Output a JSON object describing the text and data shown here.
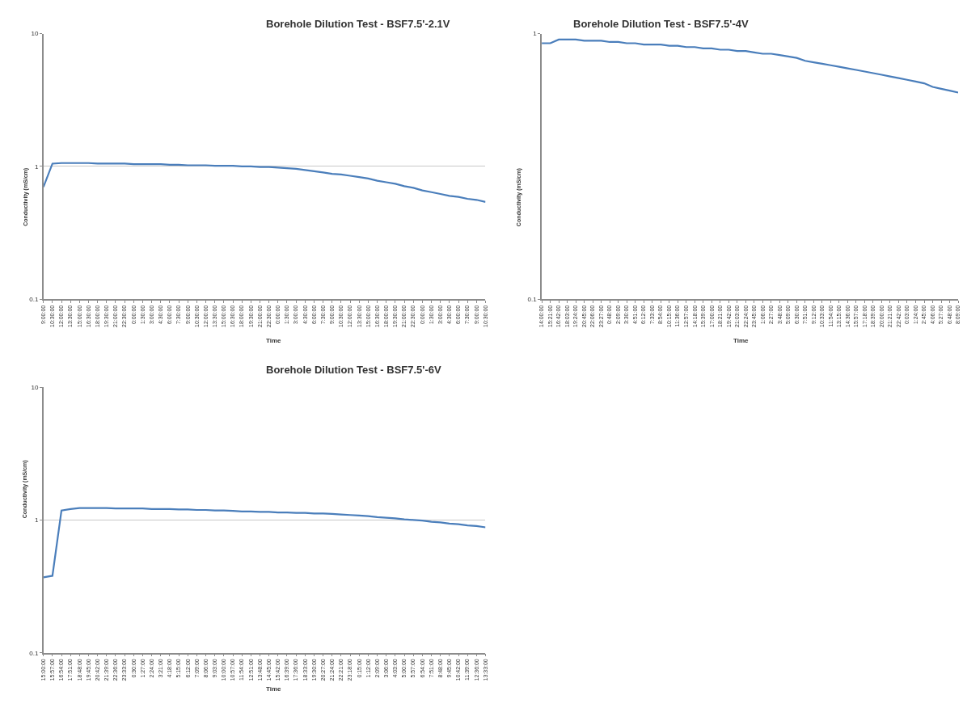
{
  "chart_data": [
    {
      "type": "line",
      "title": "Borehole Dilution Test - BSF7.5'-2.1V",
      "xlabel": "Time",
      "ylabel": "Conductivity (mS/cm)",
      "log": "y",
      "grid": "y",
      "marker": "none",
      "line_style": "solid",
      "categories": [
        "9:00:00",
        "10:30:00",
        "12:00:00",
        "13:30:00",
        "15:00:00",
        "16:30:00",
        "18:00:00",
        "19:30:00",
        "21:00:00",
        "22:30:00",
        "0:00:00",
        "1:30:00",
        "3:00:00",
        "4:30:00",
        "6:00:00",
        "7:30:00",
        "9:00:00",
        "10:30:00",
        "12:00:00",
        "13:30:00",
        "15:00:00",
        "16:30:00",
        "18:00:00",
        "19:30:00",
        "21:00:00",
        "22:30:00",
        "0:00:00",
        "1:30:00",
        "3:00:00",
        "4:30:00",
        "6:00:00",
        "7:30:00",
        "9:00:00",
        "10:30:00",
        "12:00:00",
        "13:30:00",
        "15:00:00",
        "16:30:00",
        "18:00:00",
        "19:30:00",
        "21:00:00",
        "22:30:00",
        "0:00:00",
        "1:30:00",
        "3:00:00",
        "4:30:00",
        "6:00:00",
        "7:30:00",
        "9:00:00",
        "10:30:00"
      ],
      "series": [
        {
          "color": "#4a7ebb",
          "values": [
            0.7,
            1.05,
            1.06,
            1.06,
            1.06,
            1.06,
            1.05,
            1.05,
            1.05,
            1.05,
            1.04,
            1.04,
            1.04,
            1.04,
            1.03,
            1.03,
            1.02,
            1.02,
            1.02,
            1.01,
            1.01,
            1.01,
            1.0,
            1.0,
            0.99,
            0.99,
            0.98,
            0.97,
            0.96,
            0.94,
            0.92,
            0.9,
            0.88,
            0.87,
            0.85,
            0.83,
            0.81,
            0.78,
            0.76,
            0.74,
            0.71,
            0.69,
            0.66,
            0.64,
            0.62,
            0.6,
            0.59,
            0.57,
            0.56,
            0.54
          ]
        }
      ],
      "ylim": [
        0.1,
        10
      ],
      "yticks": [
        0.1,
        1,
        10
      ]
    },
    {
      "type": "line",
      "title": "Borehole Dilution Test - BSF7.5'-4V",
      "xlabel": "Time",
      "ylabel": "Conductivity (mS/cm)",
      "log": "y",
      "marker": "none",
      "line_style": "solid",
      "categories": [
        "14:00:00",
        "15:21:00",
        "16:42:00",
        "18:03:00",
        "19:24:00",
        "20:45:00",
        "22:06:00",
        "23:27:00",
        "0:48:00",
        "2:09:00",
        "3:30:00",
        "4:51:00",
        "6:12:00",
        "7:33:00",
        "8:54:00",
        "10:15:00",
        "11:36:00",
        "12:57:00",
        "14:18:00",
        "15:39:00",
        "17:00:00",
        "18:21:00",
        "19:42:00",
        "21:03:00",
        "22:24:00",
        "23:45:00",
        "1:06:00",
        "2:27:00",
        "3:48:00",
        "5:09:00",
        "6:30:00",
        "7:51:00",
        "9:12:00",
        "10:33:00",
        "11:54:00",
        "13:15:00",
        "14:36:00",
        "15:57:00",
        "17:18:00",
        "18:39:00",
        "20:00:00",
        "21:21:00",
        "22:42:00",
        "0:03:00",
        "1:24:00",
        "2:45:00",
        "4:06:00",
        "5:27:00",
        "6:48:00",
        "8:09:00"
      ],
      "series": [
        {
          "color": "#4a7ebb",
          "values": [
            0.92,
            0.92,
            0.95,
            0.95,
            0.95,
            0.94,
            0.94,
            0.94,
            0.93,
            0.93,
            0.92,
            0.92,
            0.91,
            0.91,
            0.91,
            0.9,
            0.9,
            0.89,
            0.89,
            0.88,
            0.88,
            0.87,
            0.87,
            0.86,
            0.86,
            0.85,
            0.84,
            0.84,
            0.83,
            0.82,
            0.81,
            0.79,
            0.78,
            0.77,
            0.76,
            0.75,
            0.74,
            0.73,
            0.72,
            0.71,
            0.7,
            0.69,
            0.68,
            0.67,
            0.66,
            0.65,
            0.63,
            0.62,
            0.61,
            0.6
          ]
        }
      ],
      "ylim": [
        0.1,
        1
      ],
      "yticks": [
        0.1,
        1
      ]
    },
    {
      "type": "line",
      "title": "Borehole Dilution Test - BSF7.5'-6V",
      "xlabel": "Time",
      "ylabel": "Conductivity (mS/cm)",
      "log": "y",
      "grid": "y",
      "marker": "none",
      "line_style": "solid",
      "categories": [
        "15:00:00",
        "15:57:00",
        "16:54:00",
        "17:51:00",
        "18:48:00",
        "19:45:00",
        "20:42:00",
        "21:39:00",
        "22:36:00",
        "23:33:00",
        "0:30:00",
        "1:27:00",
        "2:24:00",
        "3:21:00",
        "4:18:00",
        "5:15:00",
        "6:12:00",
        "7:09:00",
        "8:06:00",
        "9:03:00",
        "10:00:00",
        "10:57:00",
        "11:54:00",
        "12:51:00",
        "13:48:00",
        "14:45:00",
        "15:42:00",
        "16:39:00",
        "17:36:00",
        "18:33:00",
        "19:30:00",
        "20:27:00",
        "21:24:00",
        "22:21:00",
        "23:18:00",
        "0:15:00",
        "1:12:00",
        "2:09:00",
        "3:06:00",
        "4:03:00",
        "5:00:00",
        "5:57:00",
        "6:54:00",
        "7:51:00",
        "8:48:00",
        "9:45:00",
        "10:42:00",
        "11:39:00",
        "12:36:00",
        "13:33:00"
      ],
      "series": [
        {
          "color": "#4a7ebb",
          "values": [
            0.37,
            0.38,
            1.18,
            1.21,
            1.23,
            1.23,
            1.23,
            1.23,
            1.22,
            1.22,
            1.22,
            1.22,
            1.21,
            1.21,
            1.21,
            1.2,
            1.2,
            1.19,
            1.19,
            1.18,
            1.18,
            1.17,
            1.16,
            1.16,
            1.15,
            1.15,
            1.14,
            1.14,
            1.13,
            1.13,
            1.12,
            1.12,
            1.11,
            1.1,
            1.09,
            1.08,
            1.07,
            1.05,
            1.04,
            1.03,
            1.01,
            1.0,
            0.99,
            0.97,
            0.96,
            0.94,
            0.93,
            0.91,
            0.9,
            0.88
          ]
        }
      ],
      "ylim": [
        0.1,
        10
      ],
      "yticks": [
        0.1,
        1,
        10
      ]
    }
  ]
}
